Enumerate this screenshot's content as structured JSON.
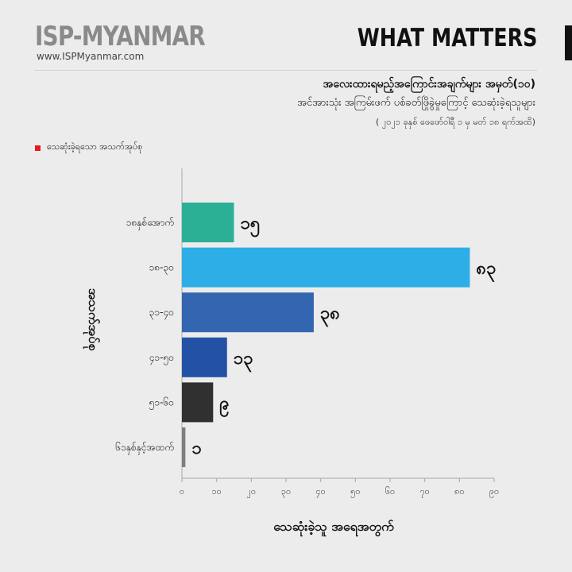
{
  "header": {
    "brand": "ISP-MYANMAR",
    "url": "www.ISPMyanmar.com",
    "section": "WHAT MATTERS",
    "title": "အလေးထားရမည့်အကြောင်းအချက်များ အမှတ်(၁၀)",
    "subtitle": "အင်အားသုံး အကြမ်းဖက် ပစ်ခတ်ဖြိုခွဲမှုကြောင့် သေဆုံးခဲ့ရသူများ",
    "date_range": "( ၂၀၂၁ ခုနှစ် ဖေဖော်ဝါရီ ၁ မှ မတ် ၁၈ ရက်အထိ)"
  },
  "legend": {
    "label": "သေဆုံးခဲ့ရသော အသက်အုပ်စု",
    "color": "#e21b23"
  },
  "chart_data": {
    "type": "bar",
    "orientation": "horizontal",
    "categories": [
      "၁၈နှစ်အောက်",
      "၁၈-၃၀",
      "၃၁-၄၀",
      "၄၁-၅၀",
      "၅၁-၆၀",
      "၆၁နှစ်နှင့်အထက်"
    ],
    "values": [
      15,
      83,
      38,
      13,
      9,
      1
    ],
    "value_labels": [
      "၁၅",
      "၈၃",
      "၃၈",
      "၁၃",
      "၉",
      "၁"
    ],
    "colors": [
      "#2bb096",
      "#2eaee6",
      "#3465b1",
      "#2351a5",
      "#303030",
      "#7e7e7e"
    ],
    "xlim": [
      0,
      90
    ],
    "xticks": [
      0,
      10,
      20,
      30,
      40,
      50,
      60,
      70,
      80,
      90
    ],
    "xtick_labels": [
      "၀",
      "၁၀",
      "၂၀",
      "၃၀",
      "၄၀",
      "၅၀",
      "၆၀",
      "၇၀",
      "၈၀",
      "၉၀"
    ],
    "xlabel": "သေဆုံးခဲ့သူ အရေအတွက်",
    "ylabel": "အသက်အုပ်စု",
    "grid": false
  }
}
